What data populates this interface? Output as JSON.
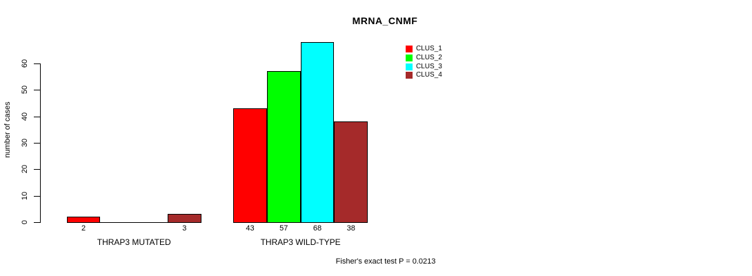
{
  "chart_data": {
    "type": "bar",
    "title": "MRNA_CNMF",
    "ylabel": "number of cases",
    "xlabel": "",
    "ylim": [
      0,
      60
    ],
    "yticks": [
      0,
      10,
      20,
      30,
      40,
      50,
      60
    ],
    "grid": false,
    "background": "#ffffff",
    "bar_border_color": "#000000",
    "categories": [
      "THRAP3 MUTATED",
      "THRAP3 WILD-TYPE"
    ],
    "series": [
      {
        "name": "CLUS_1",
        "color": "#ff0000",
        "values": [
          2,
          43
        ]
      },
      {
        "name": "CLUS_2",
        "color": "#00ff00",
        "values": [
          0,
          57
        ]
      },
      {
        "name": "CLUS_3",
        "color": "#00ffff",
        "values": [
          0,
          68
        ]
      },
      {
        "name": "CLUS_4",
        "color": "#a52a2a",
        "values": [
          3,
          38
        ]
      }
    ],
    "bar_labels": [
      [
        "2",
        "",
        "",
        "3"
      ],
      [
        "43",
        "57",
        "68",
        "38"
      ]
    ],
    "legend": {
      "position": "top-right",
      "entries": [
        "CLUS_1",
        "CLUS_2",
        "CLUS_3",
        "CLUS_4"
      ]
    },
    "annotation": "Fisher's exact test P = 0.0213"
  }
}
